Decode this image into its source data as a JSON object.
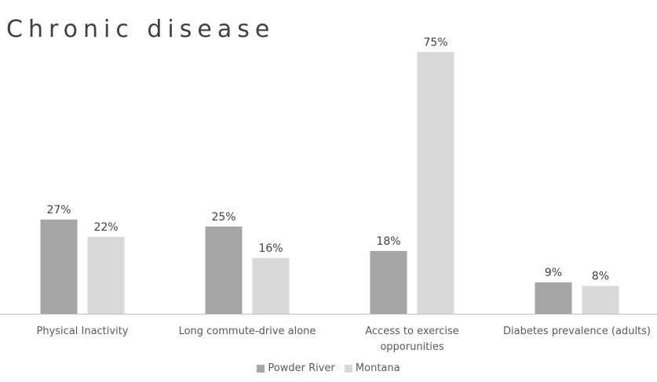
{
  "chart_data": {
    "type": "bar",
    "title": "Chronic disease",
    "categories": [
      [
        "Physical Inactivity"
      ],
      [
        "Long commute-drive alone"
      ],
      [
        "Access to exercise",
        "opporunities"
      ],
      [
        "Diabetes prevalence (adults)"
      ]
    ],
    "series": [
      {
        "name": "Powder River",
        "values": [
          27,
          25,
          18,
          9
        ],
        "labels": [
          "27%",
          "25%",
          "18%",
          "9%"
        ],
        "color": "#a6a6a6"
      },
      {
        "name": "Montana",
        "values": [
          22,
          16,
          75,
          8
        ],
        "labels": [
          "22%",
          "16%",
          "75%",
          "8%"
        ],
        "color": "#d9d9d9"
      }
    ],
    "value_unit": "%",
    "axis_visible": false,
    "grid": false,
    "legend_position": "bottom",
    "axis_line_color": "#bfbfbf"
  }
}
